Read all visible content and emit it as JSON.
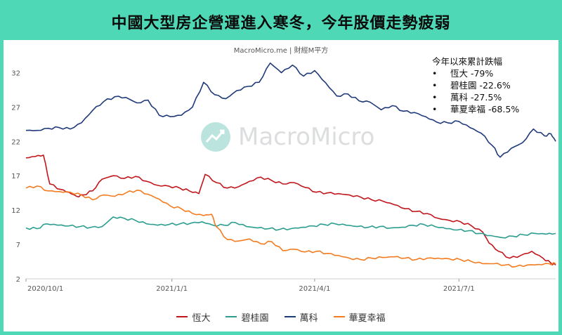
{
  "title": "中國大型房企營運進入寒冬，今年股價走勢疲弱",
  "source": "MacroMicro.me | 財經M平方",
  "watermark": "MacroMicro",
  "annotation": {
    "heading": "今年以來累計跌幅",
    "bullet": "•",
    "items": [
      {
        "name": "恆大",
        "change": "-79%"
      },
      {
        "name": "碧桂園",
        "change": "-22.6%"
      },
      {
        "name": "萬科",
        "change": "-27.5%"
      },
      {
        "name": "華夏幸福",
        "change": "-68.5%"
      }
    ]
  },
  "chart_data": {
    "type": "line",
    "title": "中國大型房企營運進入寒冬，今年股價走勢疲弱",
    "xlabel": "",
    "ylabel": "",
    "x_ticks": [
      "2020/10/1",
      "2021/1/1",
      "2021/4/1",
      "2021/7/1"
    ],
    "y_ticks": [
      2,
      7,
      12,
      17,
      22,
      27,
      32
    ],
    "ylim": [
      2,
      34.5
    ],
    "xlim": [
      "2020-10-01",
      "2021-08-31"
    ],
    "grid": false,
    "legend_position": "bottom",
    "series": [
      {
        "name": "恆大",
        "color": "#c0161b",
        "points": [
          [
            "2020-10-01",
            19.6
          ],
          [
            "2020-10-07",
            19.8
          ],
          [
            "2020-10-12",
            20.0
          ],
          [
            "2020-10-16",
            15.8
          ],
          [
            "2020-10-23",
            15.0
          ],
          [
            "2020-10-28",
            14.6
          ],
          [
            "2020-11-02",
            14.0
          ],
          [
            "2020-11-06",
            14.2
          ],
          [
            "2020-11-12",
            14.8
          ],
          [
            "2020-11-18",
            16.5
          ],
          [
            "2020-11-25",
            17.0
          ],
          [
            "2020-12-02",
            16.6
          ],
          [
            "2020-12-09",
            16.9
          ],
          [
            "2020-12-16",
            16.2
          ],
          [
            "2020-12-23",
            15.6
          ],
          [
            "2020-12-30",
            15.5
          ],
          [
            "2021-01-06",
            15.2
          ],
          [
            "2021-01-12",
            14.8
          ],
          [
            "2021-01-18",
            14.4
          ],
          [
            "2021-01-22",
            17.2
          ],
          [
            "2021-01-29",
            16.0
          ],
          [
            "2021-02-05",
            15.2
          ],
          [
            "2021-02-12",
            15.4
          ],
          [
            "2021-02-19",
            16.2
          ],
          [
            "2021-02-26",
            16.8
          ],
          [
            "2021-03-05",
            16.3
          ],
          [
            "2021-03-12",
            15.8
          ],
          [
            "2021-03-19",
            16.0
          ],
          [
            "2021-03-26",
            15.3
          ],
          [
            "2021-04-02",
            14.6
          ],
          [
            "2021-04-09",
            14.5
          ],
          [
            "2021-04-16",
            14.4
          ],
          [
            "2021-04-23",
            14.2
          ],
          [
            "2021-04-30",
            13.9
          ],
          [
            "2021-05-07",
            13.5
          ],
          [
            "2021-05-14",
            13.3
          ],
          [
            "2021-05-21",
            12.8
          ],
          [
            "2021-05-28",
            12.2
          ],
          [
            "2021-06-04",
            11.8
          ],
          [
            "2021-06-11",
            11.5
          ],
          [
            "2021-06-18",
            10.8
          ],
          [
            "2021-06-25",
            10.5
          ],
          [
            "2021-07-02",
            10.3
          ],
          [
            "2021-07-09",
            9.7
          ],
          [
            "2021-07-16",
            8.8
          ],
          [
            "2021-07-20",
            7.2
          ],
          [
            "2021-07-26",
            6.0
          ],
          [
            "2021-08-02",
            5.0
          ],
          [
            "2021-08-09",
            5.4
          ],
          [
            "2021-08-16",
            6.0
          ],
          [
            "2021-08-23",
            5.0
          ],
          [
            "2021-08-28",
            4.3
          ],
          [
            "2021-08-31",
            4.0
          ]
        ]
      },
      {
        "name": "碧桂園",
        "color": "#2a9d8f",
        "points": [
          [
            "2020-10-01",
            9.4
          ],
          [
            "2020-10-08",
            9.3
          ],
          [
            "2020-10-14",
            10.0
          ],
          [
            "2020-10-21",
            9.8
          ],
          [
            "2020-10-28",
            9.7
          ],
          [
            "2020-11-04",
            9.6
          ],
          [
            "2020-11-11",
            9.5
          ],
          [
            "2020-11-18",
            9.6
          ],
          [
            "2020-11-25",
            11.0
          ],
          [
            "2020-12-02",
            10.8
          ],
          [
            "2020-12-09",
            10.5
          ],
          [
            "2020-12-16",
            10.0
          ],
          [
            "2020-12-23",
            9.8
          ],
          [
            "2020-12-30",
            9.9
          ],
          [
            "2021-01-06",
            10.0
          ],
          [
            "2021-01-13",
            10.1
          ],
          [
            "2021-01-20",
            10.3
          ],
          [
            "2021-01-27",
            9.8
          ],
          [
            "2021-02-03",
            9.8
          ],
          [
            "2021-02-10",
            10.2
          ],
          [
            "2021-02-17",
            9.6
          ],
          [
            "2021-02-24",
            9.4
          ],
          [
            "2021-03-03",
            9.3
          ],
          [
            "2021-03-10",
            9.2
          ],
          [
            "2021-03-17",
            9.3
          ],
          [
            "2021-03-24",
            9.5
          ],
          [
            "2021-03-31",
            9.7
          ],
          [
            "2021-04-07",
            9.9
          ],
          [
            "2021-04-14",
            10.0
          ],
          [
            "2021-04-21",
            9.8
          ],
          [
            "2021-04-28",
            9.6
          ],
          [
            "2021-05-05",
            9.5
          ],
          [
            "2021-05-12",
            9.6
          ],
          [
            "2021-05-19",
            9.4
          ],
          [
            "2021-05-26",
            9.5
          ],
          [
            "2021-06-02",
            9.8
          ],
          [
            "2021-06-09",
            9.9
          ],
          [
            "2021-06-16",
            9.6
          ],
          [
            "2021-06-23",
            9.3
          ],
          [
            "2021-06-30",
            9.1
          ],
          [
            "2021-07-07",
            9.0
          ],
          [
            "2021-07-14",
            8.6
          ],
          [
            "2021-07-21",
            8.3
          ],
          [
            "2021-07-28",
            8.0
          ],
          [
            "2021-08-04",
            8.2
          ],
          [
            "2021-08-11",
            8.4
          ],
          [
            "2021-08-18",
            8.6
          ],
          [
            "2021-08-25",
            8.5
          ],
          [
            "2021-08-31",
            8.6
          ]
        ]
      },
      {
        "name": "萬科",
        "color": "#1f3a7a",
        "points": [
          [
            "2020-10-01",
            23.6
          ],
          [
            "2020-10-08",
            23.6
          ],
          [
            "2020-10-15",
            23.9
          ],
          [
            "2020-10-22",
            24.0
          ],
          [
            "2020-10-29",
            23.8
          ],
          [
            "2020-11-05",
            24.7
          ],
          [
            "2020-11-12",
            26.5
          ],
          [
            "2020-11-19",
            27.8
          ],
          [
            "2020-11-26",
            28.5
          ],
          [
            "2020-12-03",
            28.4
          ],
          [
            "2020-12-10",
            27.6
          ],
          [
            "2020-12-17",
            28.0
          ],
          [
            "2020-12-24",
            25.8
          ],
          [
            "2020-12-31",
            25.6
          ],
          [
            "2021-01-07",
            25.8
          ],
          [
            "2021-01-14",
            27.0
          ],
          [
            "2021-01-21",
            30.6
          ],
          [
            "2021-01-28",
            28.8
          ],
          [
            "2021-02-04",
            28.2
          ],
          [
            "2021-02-11",
            29.4
          ],
          [
            "2021-02-18",
            30.0
          ],
          [
            "2021-02-25",
            30.6
          ],
          [
            "2021-03-04",
            33.4
          ],
          [
            "2021-03-11",
            32.0
          ],
          [
            "2021-03-18",
            33.1
          ],
          [
            "2021-03-25",
            31.5
          ],
          [
            "2021-04-01",
            32.3
          ],
          [
            "2021-04-08",
            30.5
          ],
          [
            "2021-04-15",
            28.6
          ],
          [
            "2021-04-22",
            28.9
          ],
          [
            "2021-04-29",
            27.9
          ],
          [
            "2021-05-06",
            27.7
          ],
          [
            "2021-05-13",
            26.6
          ],
          [
            "2021-05-20",
            27.2
          ],
          [
            "2021-05-27",
            26.4
          ],
          [
            "2021-06-03",
            26.2
          ],
          [
            "2021-06-10",
            25.6
          ],
          [
            "2021-06-17",
            24.8
          ],
          [
            "2021-06-24",
            24.7
          ],
          [
            "2021-07-01",
            24.9
          ],
          [
            "2021-07-08",
            24.0
          ],
          [
            "2021-07-15",
            23.2
          ],
          [
            "2021-07-22",
            21.4
          ],
          [
            "2021-07-27",
            19.7
          ],
          [
            "2021-08-03",
            21.0
          ],
          [
            "2021-08-10",
            21.8
          ],
          [
            "2021-08-17",
            23.8
          ],
          [
            "2021-08-24",
            22.8
          ],
          [
            "2021-08-28",
            23.1
          ],
          [
            "2021-08-31",
            22.0
          ]
        ]
      },
      {
        "name": "華夏幸福",
        "color": "#f47c20",
        "points": [
          [
            "2020-10-01",
            15.2
          ],
          [
            "2020-10-08",
            15.5
          ],
          [
            "2020-10-15",
            14.8
          ],
          [
            "2020-10-22",
            14.7
          ],
          [
            "2020-10-29",
            14.6
          ],
          [
            "2020-11-05",
            14.2
          ],
          [
            "2020-11-12",
            13.5
          ],
          [
            "2020-11-19",
            14.2
          ],
          [
            "2020-11-26",
            14.0
          ],
          [
            "2020-12-03",
            14.5
          ],
          [
            "2020-12-10",
            14.9
          ],
          [
            "2020-12-17",
            14.3
          ],
          [
            "2020-12-24",
            13.6
          ],
          [
            "2020-12-31",
            12.6
          ],
          [
            "2021-01-07",
            12.2
          ],
          [
            "2021-01-14",
            11.5
          ],
          [
            "2021-01-21",
            11.2
          ],
          [
            "2021-01-26",
            11.4
          ],
          [
            "2021-01-29",
            9.6
          ],
          [
            "2021-02-05",
            7.7
          ],
          [
            "2021-02-12",
            7.5
          ],
          [
            "2021-02-19",
            7.8
          ],
          [
            "2021-02-26",
            7.1
          ],
          [
            "2021-03-05",
            7.4
          ],
          [
            "2021-03-12",
            6.1
          ],
          [
            "2021-03-19",
            6.3
          ],
          [
            "2021-03-26",
            5.9
          ],
          [
            "2021-04-02",
            6.0
          ],
          [
            "2021-04-09",
            5.7
          ],
          [
            "2021-04-16",
            5.4
          ],
          [
            "2021-04-23",
            5.0
          ],
          [
            "2021-04-30",
            4.8
          ],
          [
            "2021-05-07",
            5.0
          ],
          [
            "2021-05-14",
            5.1
          ],
          [
            "2021-05-21",
            5.2
          ],
          [
            "2021-05-28",
            5.0
          ],
          [
            "2021-06-04",
            4.8
          ],
          [
            "2021-06-11",
            5.0
          ],
          [
            "2021-06-18",
            5.0
          ],
          [
            "2021-06-25",
            4.9
          ],
          [
            "2021-07-02",
            4.8
          ],
          [
            "2021-07-09",
            4.5
          ],
          [
            "2021-07-16",
            4.2
          ],
          [
            "2021-07-23",
            4.2
          ],
          [
            "2021-07-30",
            4.0
          ],
          [
            "2021-08-06",
            3.8
          ],
          [
            "2021-08-13",
            4.0
          ],
          [
            "2021-08-20",
            4.1
          ],
          [
            "2021-08-27",
            4.2
          ],
          [
            "2021-08-31",
            4.2
          ]
        ]
      }
    ]
  }
}
